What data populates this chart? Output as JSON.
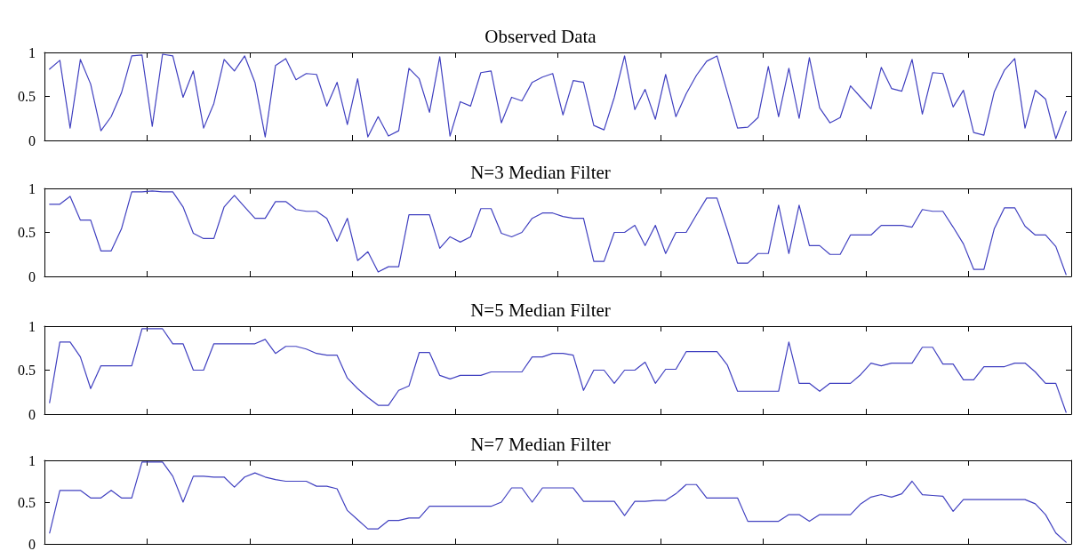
{
  "chart_data": [
    {
      "type": "line",
      "title": "Observed Data",
      "color": "#4040c0",
      "ylim": [
        0,
        1
      ],
      "yticks": [
        0,
        0.5,
        1
      ],
      "tick_labels": "y",
      "categories": [
        null,
        null,
        null,
        null,
        null,
        null,
        null,
        null,
        null,
        null,
        null,
        null,
        null,
        null,
        null,
        null,
        null,
        null,
        null,
        null,
        null,
        null,
        null,
        null,
        null,
        null,
        null,
        null,
        null,
        null,
        null,
        null,
        null,
        null,
        null,
        null,
        null,
        null,
        null,
        null,
        null,
        null,
        null,
        null,
        null,
        null,
        null,
        null,
        null,
        null,
        null,
        null,
        null,
        null,
        null,
        null,
        null,
        null,
        null,
        null,
        null,
        null,
        null,
        null,
        null,
        null,
        null,
        null,
        null,
        null,
        null,
        null,
        null,
        null,
        null,
        null,
        null,
        null,
        null,
        null,
        null,
        null,
        null,
        null,
        null,
        null,
        null,
        null,
        null,
        null,
        null,
        null,
        null,
        null,
        null,
        null,
        null,
        null,
        null,
        null
      ],
      "values": [
        0.81,
        0.91,
        0.14,
        0.92,
        0.64,
        0.11,
        0.27,
        0.54,
        0.96,
        0.97,
        0.16,
        0.98,
        0.96,
        0.49,
        0.79,
        0.14,
        0.42,
        0.92,
        0.79,
        0.96,
        0.66,
        0.04,
        0.85,
        0.93,
        0.69,
        0.76,
        0.75,
        0.39,
        0.66,
        0.18,
        0.7,
        0.04,
        0.27,
        0.05,
        0.11,
        0.82,
        0.7,
        0.32,
        0.95,
        0.05,
        0.44,
        0.39,
        0.77,
        0.79,
        0.2,
        0.49,
        0.45,
        0.66,
        0.72,
        0.76,
        0.29,
        0.68,
        0.66,
        0.17,
        0.12,
        0.49,
        0.96,
        0.35,
        0.58,
        0.24,
        0.75,
        0.27,
        0.53,
        0.74,
        0.9,
        0.96,
        0.55,
        0.14,
        0.15,
        0.26,
        0.84,
        0.27,
        0.82,
        0.25,
        0.94,
        0.37,
        0.2,
        0.26,
        0.62,
        0.49,
        0.36,
        0.83,
        0.59,
        0.56,
        0.92,
        0.3,
        0.77,
        0.76,
        0.38,
        0.57,
        0.09,
        0.06,
        0.55,
        0.8,
        0.93,
        0.14,
        0.57,
        0.47,
        0.02,
        0.33
      ]
    },
    {
      "type": "line",
      "title": "N=3 Median Filter",
      "color": "#4040c0",
      "ylim": [
        0,
        1
      ],
      "yticks": [
        0,
        0.5,
        1
      ],
      "tick_labels": "y",
      "categories": [
        null,
        null,
        null,
        null,
        null,
        null,
        null,
        null,
        null,
        null,
        null,
        null,
        null,
        null,
        null,
        null,
        null,
        null,
        null,
        null,
        null,
        null,
        null,
        null,
        null,
        null,
        null,
        null,
        null,
        null,
        null,
        null,
        null,
        null,
        null,
        null,
        null,
        null,
        null,
        null,
        null,
        null,
        null,
        null,
        null,
        null,
        null,
        null,
        null,
        null,
        null,
        null,
        null,
        null,
        null,
        null,
        null,
        null,
        null,
        null,
        null,
        null,
        null,
        null,
        null,
        null,
        null,
        null,
        null,
        null,
        null,
        null,
        null,
        null,
        null,
        null,
        null,
        null,
        null,
        null,
        null,
        null,
        null,
        null,
        null,
        null,
        null,
        null,
        null,
        null,
        null,
        null,
        null,
        null,
        null,
        null,
        null,
        null,
        null,
        null
      ],
      "values": [
        0.82,
        0.82,
        0.91,
        0.64,
        0.64,
        0.29,
        0.29,
        0.54,
        0.96,
        0.96,
        0.97,
        0.96,
        0.96,
        0.79,
        0.49,
        0.43,
        0.43,
        0.79,
        0.92,
        0.79,
        0.66,
        0.66,
        0.85,
        0.85,
        0.76,
        0.74,
        0.74,
        0.66,
        0.4,
        0.66,
        0.18,
        0.28,
        0.05,
        0.11,
        0.11,
        0.7,
        0.7,
        0.7,
        0.32,
        0.45,
        0.39,
        0.45,
        0.77,
        0.77,
        0.49,
        0.45,
        0.5,
        0.66,
        0.72,
        0.72,
        0.68,
        0.66,
        0.66,
        0.17,
        0.17,
        0.5,
        0.5,
        0.58,
        0.35,
        0.58,
        0.26,
        0.5,
        0.5,
        0.7,
        0.89,
        0.89,
        0.53,
        0.15,
        0.15,
        0.26,
        0.26,
        0.81,
        0.26,
        0.81,
        0.35,
        0.35,
        0.25,
        0.25,
        0.47,
        0.47,
        0.47,
        0.58,
        0.58,
        0.58,
        0.56,
        0.76,
        0.74,
        0.74,
        0.56,
        0.37,
        0.08,
        0.08,
        0.54,
        0.78,
        0.78,
        0.57,
        0.47,
        0.47,
        0.34,
        0.02
      ]
    },
    {
      "type": "line",
      "title": "N=5 Median Filter",
      "color": "#4040c0",
      "ylim": [
        0,
        1
      ],
      "yticks": [
        0,
        0.5,
        1
      ],
      "tick_labels": "y",
      "categories": [
        null,
        null,
        null,
        null,
        null,
        null,
        null,
        null,
        null,
        null,
        null,
        null,
        null,
        null,
        null,
        null,
        null,
        null,
        null,
        null,
        null,
        null,
        null,
        null,
        null,
        null,
        null,
        null,
        null,
        null,
        null,
        null,
        null,
        null,
        null,
        null,
        null,
        null,
        null,
        null,
        null,
        null,
        null,
        null,
        null,
        null,
        null,
        null,
        null,
        null,
        null,
        null,
        null,
        null,
        null,
        null,
        null,
        null,
        null,
        null,
        null,
        null,
        null,
        null,
        null,
        null,
        null,
        null,
        null,
        null,
        null,
        null,
        null,
        null,
        null,
        null,
        null,
        null,
        null,
        null,
        null,
        null,
        null,
        null,
        null,
        null,
        null,
        null,
        null,
        null,
        null,
        null,
        null,
        null,
        null,
        null,
        null,
        null,
        null,
        null
      ],
      "values": [
        0.13,
        0.82,
        0.82,
        0.65,
        0.29,
        0.55,
        0.55,
        0.55,
        0.55,
        0.97,
        0.97,
        0.97,
        0.8,
        0.8,
        0.5,
        0.5,
        0.8,
        0.8,
        0.8,
        0.8,
        0.8,
        0.85,
        0.69,
        0.77,
        0.77,
        0.74,
        0.69,
        0.67,
        0.67,
        0.41,
        0.29,
        0.19,
        0.1,
        0.1,
        0.27,
        0.32,
        0.7,
        0.7,
        0.44,
        0.4,
        0.44,
        0.44,
        0.44,
        0.48,
        0.48,
        0.48,
        0.48,
        0.65,
        0.65,
        0.69,
        0.69,
        0.67,
        0.27,
        0.5,
        0.5,
        0.35,
        0.5,
        0.5,
        0.59,
        0.35,
        0.51,
        0.51,
        0.71,
        0.71,
        0.71,
        0.71,
        0.56,
        0.26,
        0.26,
        0.26,
        0.26,
        0.26,
        0.82,
        0.35,
        0.35,
        0.26,
        0.35,
        0.35,
        0.35,
        0.45,
        0.58,
        0.55,
        0.58,
        0.58,
        0.58,
        0.76,
        0.76,
        0.57,
        0.57,
        0.39,
        0.39,
        0.54,
        0.54,
        0.54,
        0.58,
        0.58,
        0.48,
        0.35,
        0.35,
        0.02
      ]
    },
    {
      "type": "line",
      "title": "N=7 Median Filter",
      "color": "#4040c0",
      "ylim": [
        0,
        1
      ],
      "yticks": [
        0,
        0.5,
        1
      ],
      "tick_labels": "y",
      "categories": [
        null,
        null,
        null,
        null,
        null,
        null,
        null,
        null,
        null,
        null,
        null,
        null,
        null,
        null,
        null,
        null,
        null,
        null,
        null,
        null,
        null,
        null,
        null,
        null,
        null,
        null,
        null,
        null,
        null,
        null,
        null,
        null,
        null,
        null,
        null,
        null,
        null,
        null,
        null,
        null,
        null,
        null,
        null,
        null,
        null,
        null,
        null,
        null,
        null,
        null,
        null,
        null,
        null,
        null,
        null,
        null,
        null,
        null,
        null,
        null,
        null,
        null,
        null,
        null,
        null,
        null,
        null,
        null,
        null,
        null,
        null,
        null,
        null,
        null,
        null,
        null,
        null,
        null,
        null,
        null,
        null,
        null,
        null,
        null,
        null,
        null,
        null,
        null,
        null,
        null,
        null,
        null,
        null,
        null,
        null,
        null,
        null,
        null,
        null,
        null
      ],
      "values": [
        0.13,
        0.64,
        0.64,
        0.64,
        0.55,
        0.55,
        0.64,
        0.55,
        0.55,
        0.98,
        0.98,
        0.98,
        0.81,
        0.5,
        0.81,
        0.81,
        0.8,
        0.8,
        0.68,
        0.8,
        0.85,
        0.8,
        0.77,
        0.75,
        0.75,
        0.75,
        0.69,
        0.69,
        0.66,
        0.4,
        0.29,
        0.18,
        0.18,
        0.28,
        0.28,
        0.31,
        0.31,
        0.45,
        0.45,
        0.45,
        0.45,
        0.45,
        0.45,
        0.45,
        0.5,
        0.67,
        0.67,
        0.5,
        0.67,
        0.67,
        0.67,
        0.67,
        0.51,
        0.51,
        0.51,
        0.51,
        0.34,
        0.51,
        0.51,
        0.52,
        0.52,
        0.6,
        0.71,
        0.71,
        0.55,
        0.55,
        0.55,
        0.55,
        0.27,
        0.27,
        0.27,
        0.27,
        0.35,
        0.35,
        0.27,
        0.35,
        0.35,
        0.35,
        0.35,
        0.48,
        0.56,
        0.59,
        0.56,
        0.6,
        0.75,
        0.59,
        0.58,
        0.57,
        0.39,
        0.53,
        0.53,
        0.53,
        0.53,
        0.53,
        0.53,
        0.53,
        0.48,
        0.35,
        0.13,
        0.02
      ]
    }
  ]
}
